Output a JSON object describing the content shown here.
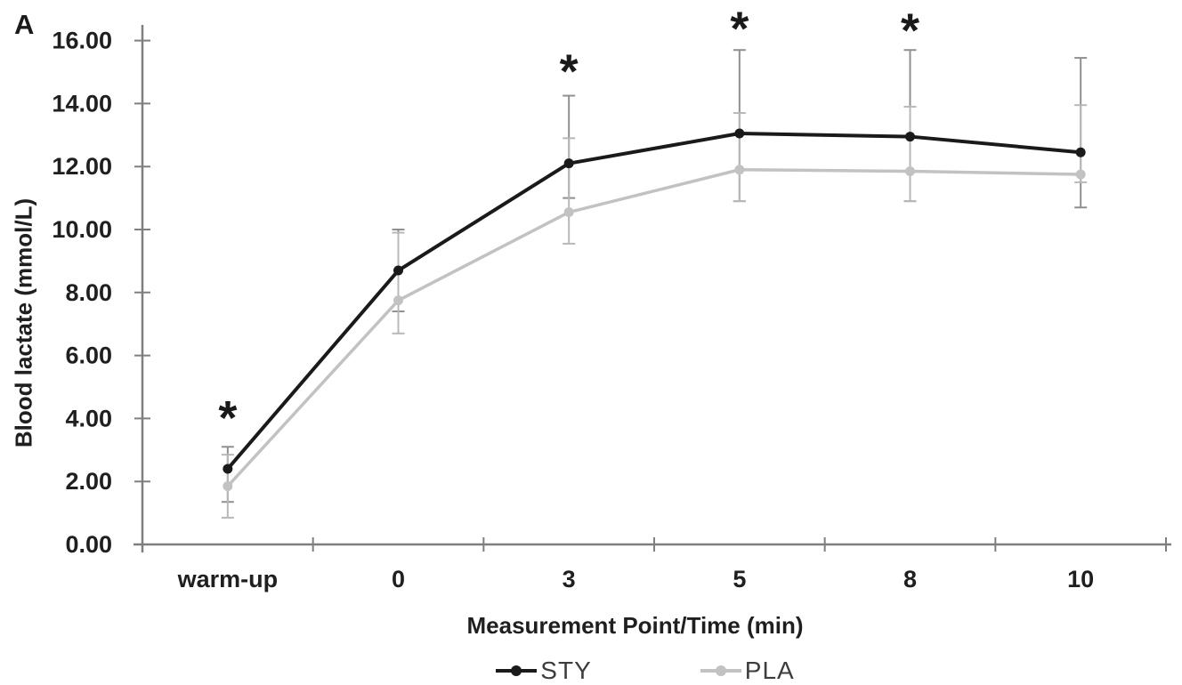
{
  "figure": {
    "panel_label": "A",
    "background_color": "#ffffff"
  },
  "chart_data": {
    "type": "line",
    "title": "",
    "xlabel": "Measurement Point/Time (min)",
    "ylabel": "Blood lactate (mmol/L)",
    "categories": [
      "warm-up",
      "0",
      "3",
      "5",
      "8",
      "10"
    ],
    "y_axis": {
      "min": 0,
      "max": 16,
      "step": 2,
      "tick_labels": [
        "0.00",
        "2.00",
        "4.00",
        "6.00",
        "8.00",
        "10.00",
        "12.00",
        "14.00",
        "16.00"
      ]
    },
    "grid": false,
    "axis_color": "#7f7f7f",
    "text_color": "#1f1f1f",
    "series": [
      {
        "name": "STY",
        "color": "#1a1a1a",
        "marker": "circle",
        "line_width": 4,
        "values": [
          2.4,
          8.7,
          12.1,
          13.05,
          12.95,
          12.45
        ],
        "error_low": [
          1.35,
          7.4,
          11.0,
          10.9,
          10.9,
          10.7
        ],
        "error_high": [
          3.1,
          10.0,
          14.25,
          15.7,
          15.7,
          15.45
        ],
        "error_color": "#909090"
      },
      {
        "name": "PLA",
        "color": "#c2c2c2",
        "marker": "circle",
        "line_width": 3.5,
        "values": [
          1.85,
          7.75,
          10.55,
          11.9,
          11.85,
          11.75
        ],
        "error_low": [
          0.85,
          6.7,
          9.55,
          10.9,
          10.9,
          11.5
        ],
        "error_high": [
          2.85,
          9.9,
          12.9,
          13.7,
          13.9,
          13.95
        ],
        "error_color": "#b8b8b8"
      }
    ],
    "significance_markers": [
      {
        "category": "warm-up",
        "symbol": "*",
        "y": 4.3
      },
      {
        "category": "3",
        "symbol": "*",
        "y": 15.3
      },
      {
        "category": "5",
        "symbol": "*",
        "y": 16.65
      },
      {
        "category": "8",
        "symbol": "*",
        "y": 16.6
      }
    ],
    "legend": {
      "position": "bottom",
      "entries": [
        "STY",
        "PLA"
      ]
    }
  }
}
